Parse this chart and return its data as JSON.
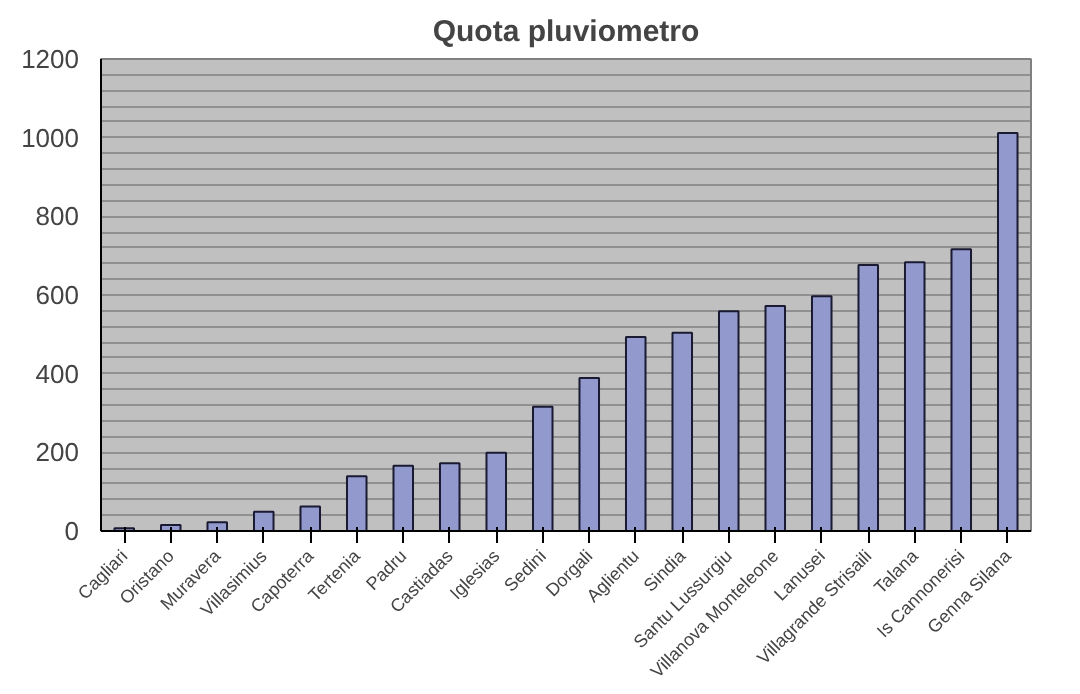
{
  "chart_data": {
    "type": "bar",
    "title": "Quota pluviometro",
    "categories": [
      "Cagliari",
      "Oristano",
      "Muravera",
      "Villasimius",
      "Capoterra",
      "Tertenia",
      "Padru",
      "Castiadas",
      "Iglesias",
      "Sedini",
      "Dorgali",
      "Aglientu",
      "Sindia",
      "Santu Lussurgiu",
      "Villanova Monteleone",
      "Lanusei",
      "Villagrande Strisaili",
      "Talana",
      "Is Cannonerisi",
      "Genna Silana"
    ],
    "values": [
      7,
      15,
      22,
      49,
      62,
      139,
      166,
      172,
      199,
      316,
      389,
      493,
      504,
      559,
      572,
      597,
      676,
      683,
      716,
      1012
    ],
    "color": "#9299cc",
    "ylim": [
      0,
      1200
    ],
    "yticks": [
      0,
      {
        "value": 40,
        "label": null
      },
      {
        "value": 80,
        "label": null
      },
      {
        "value": 120,
        "label": null
      },
      {
        "value": 160,
        "label": null
      },
      200,
      {
        "value": 240,
        "label": null
      },
      {
        "value": 280,
        "label": null
      },
      {
        "value": 320,
        "label": null
      },
      {
        "value": 360,
        "label": null
      },
      400,
      {
        "value": 440,
        "label": null
      },
      {
        "value": 480,
        "label": null
      },
      {
        "value": 520,
        "label": null
      },
      {
        "value": 560,
        "label": null
      },
      600,
      {
        "value": 640,
        "label": null
      },
      {
        "value": 680,
        "label": null
      },
      {
        "value": 720,
        "label": null
      },
      {
        "value": 760,
        "label": null
      },
      800,
      {
        "value": 840,
        "label": null
      },
      {
        "value": 880,
        "label": null
      },
      {
        "value": 920,
        "label": null
      },
      {
        "value": 960,
        "label": null
      },
      1000,
      {
        "value": 1040,
        "label": null
      },
      {
        "value": 1080,
        "label": null
      },
      {
        "value": 1120,
        "label": null
      },
      {
        "value": 1160,
        "label": null
      },
      1200
    ],
    "grid": "y"
  }
}
